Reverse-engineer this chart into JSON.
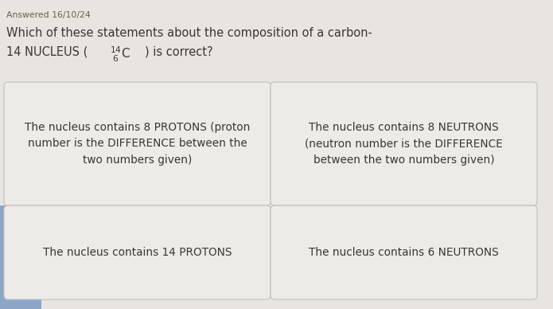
{
  "answered_text": "Answered 16/10/24",
  "question_line1": "Which of these statements about the composition of a carbon-",
  "question_line2_prefix": "14 NUCLEUS (",
  "question_line2_suffix": ") is correct?",
  "options": [
    {
      "text": "The nucleus contains 8 PROTONS (proton\nnumber is the DIFFERENCE between the\ntwo numbers given)",
      "row": 0,
      "col": 0,
      "align": "center"
    },
    {
      "text": "The nucleus contains 8 NEUTRONS\n(neutron number is the DIFFERENCE\nbetween the two numbers given)",
      "row": 0,
      "col": 1,
      "align": "center"
    },
    {
      "text": "The nucleus contains 14 PROTONS",
      "row": 1,
      "col": 0,
      "align": "center"
    },
    {
      "text": "The nucleus contains 6 NEUTRONS",
      "row": 1,
      "col": 1,
      "align": "center"
    }
  ],
  "bg_color": "#e8e4df",
  "card_color": "#edebe8",
  "card_edge_color": "#c5c0bb",
  "text_color": "#3a3632",
  "meta_color": "#666055",
  "title_fontsize": 10.5,
  "option_fontsize": 9.8,
  "meta_fontsize": 7.8,
  "blue_strip_color": "#8da5c7"
}
